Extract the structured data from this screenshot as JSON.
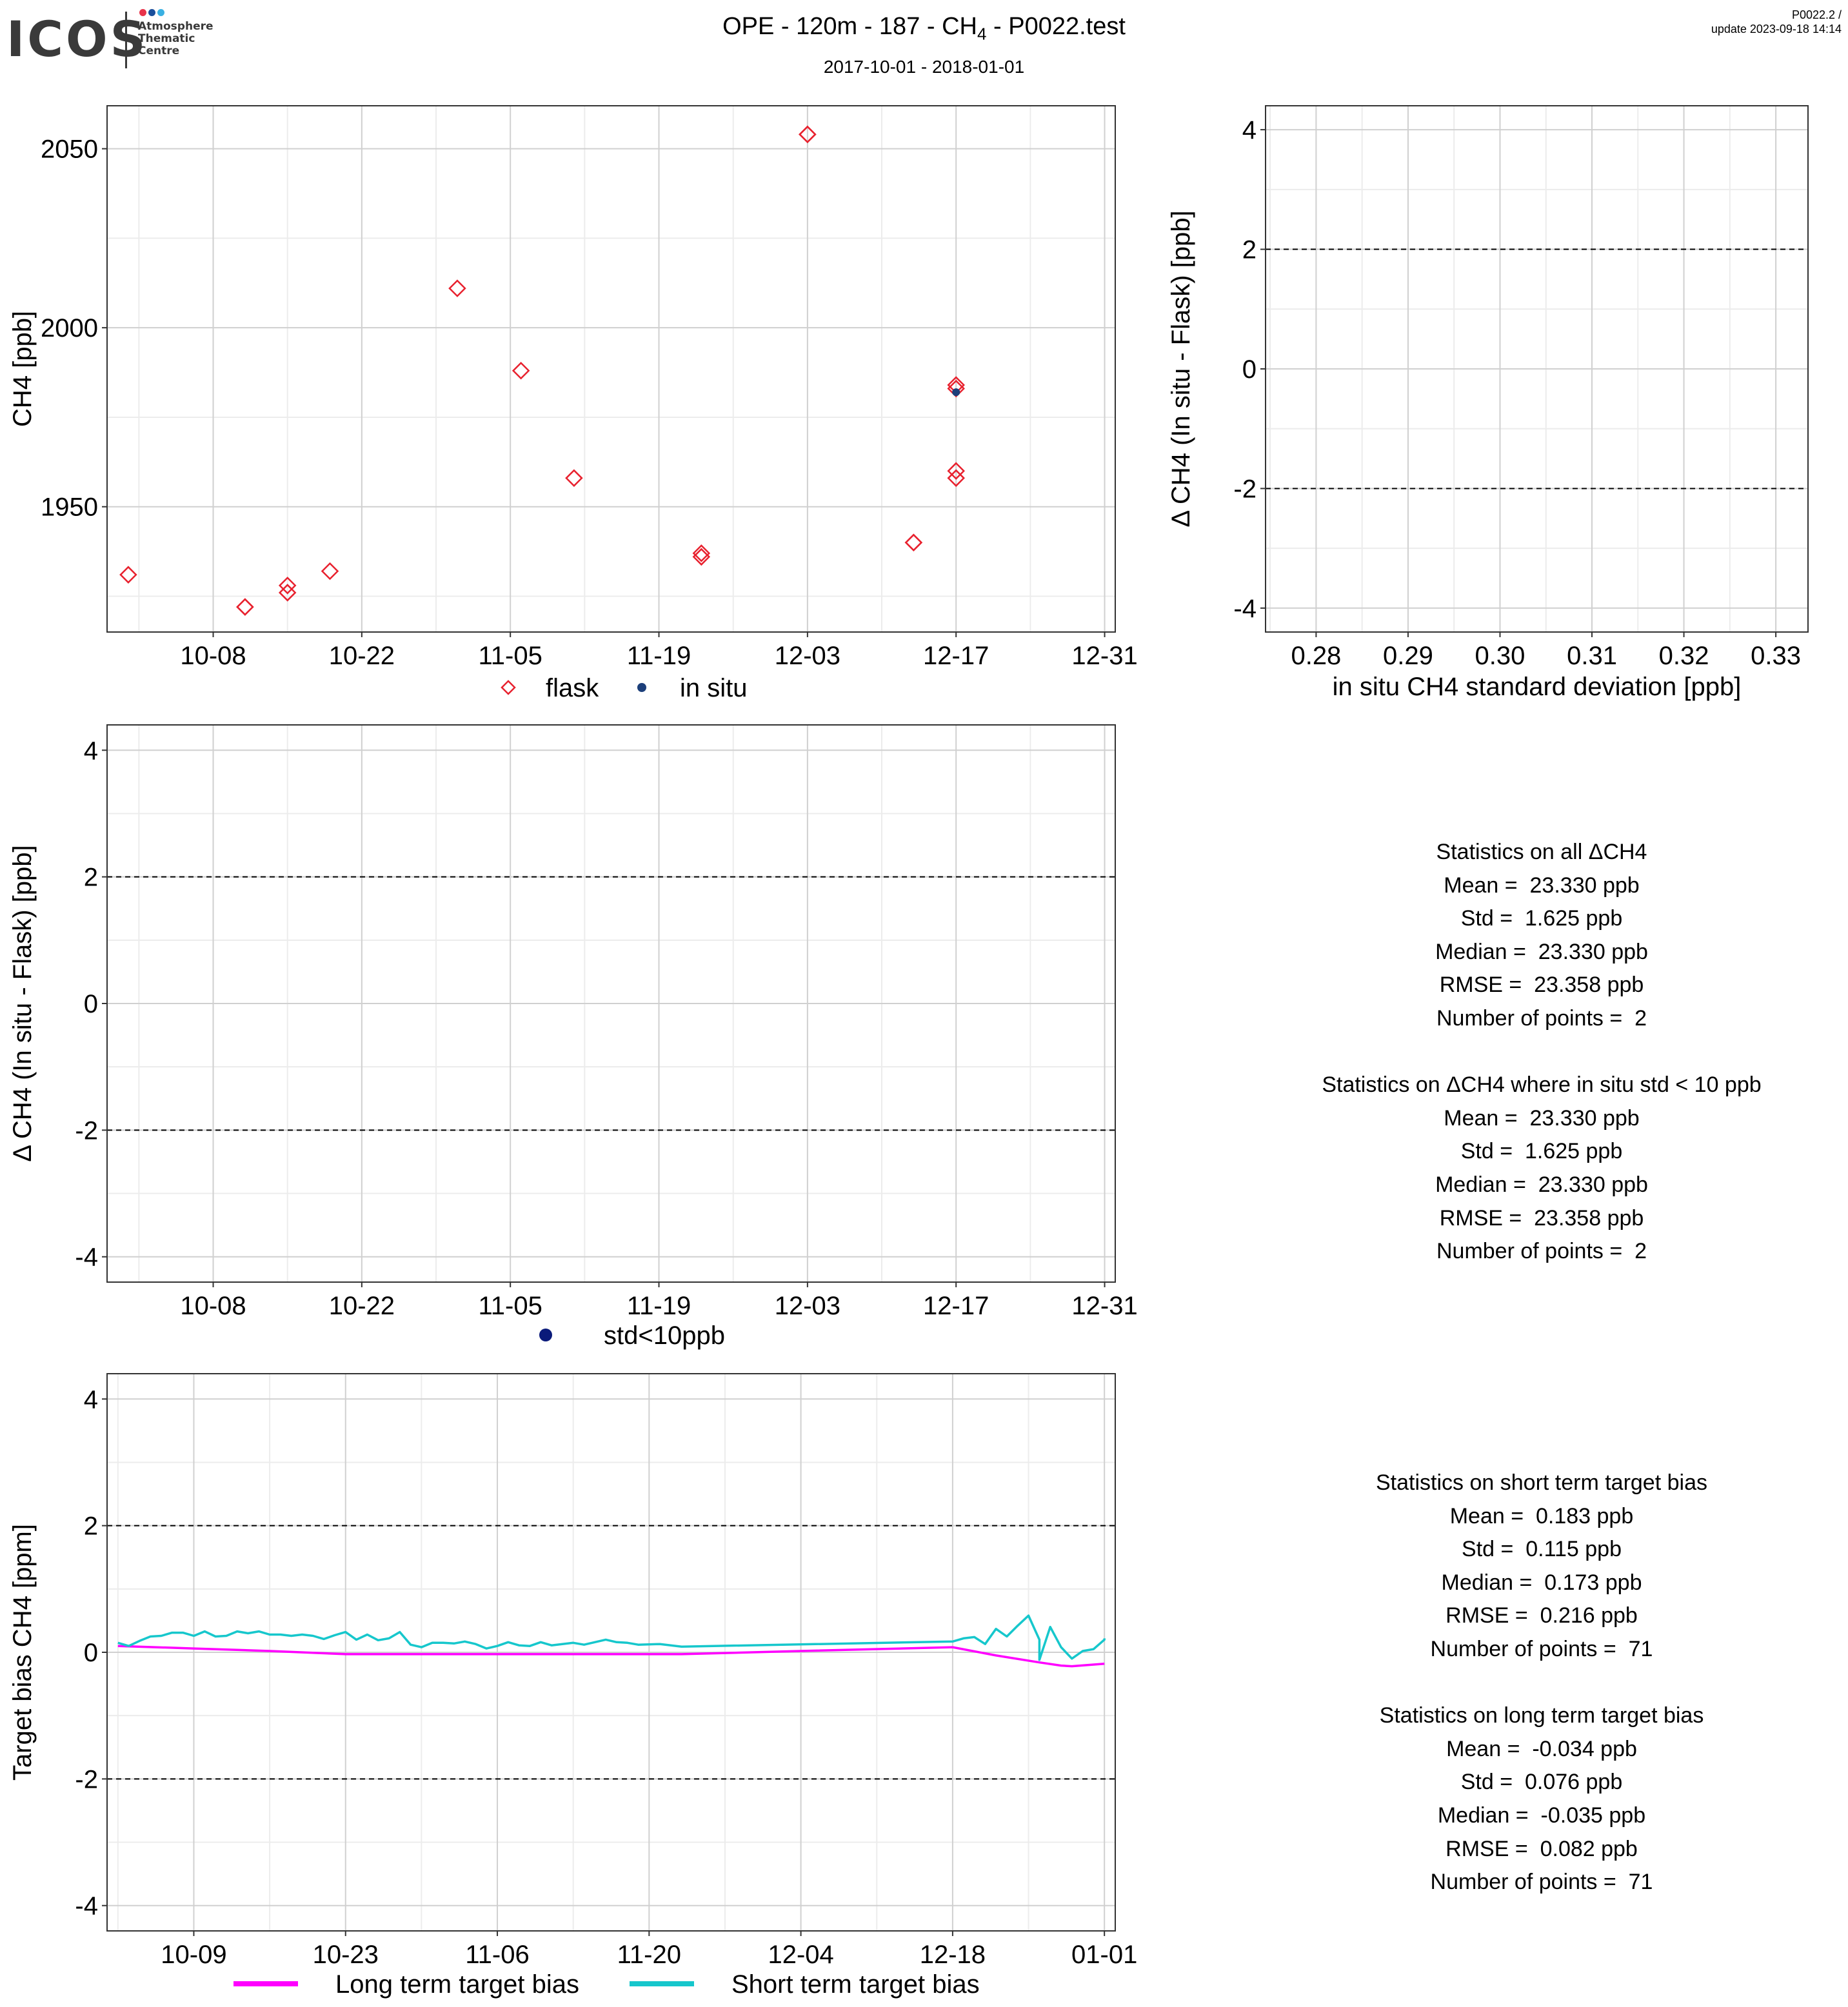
{
  "header": {
    "logo_word": "ICOS",
    "logo_lines": [
      "Atmosphere",
      "Thematic",
      "Centre"
    ],
    "logo_dot_colors": [
      "#e8334a",
      "#1a4f9c",
      "#3ab0e2"
    ],
    "title_prefix": "OPE - 120m - 187 - CH",
    "title_sub": "4",
    "title_suffix": " - P0022.test",
    "subtitle": "2017-10-01 - 2018-01-01",
    "version_line1": "P0022.2 /",
    "version_line2": "update  2023-09-18 14:14"
  },
  "colors": {
    "flask": "#e8212e",
    "in_situ": "#1c3f7a",
    "std_point": "#0a1a7a",
    "long_term": "#ff00ff",
    "short_term": "#16c7cc",
    "grid_major": "#d0d0d0",
    "grid_minor": "#ececec"
  },
  "stats_all": {
    "lines": [
      "Statistics on all ΔCH4",
      "Mean =  23.330 ppb",
      "Std =  1.625 ppb",
      "Median =  23.330 ppb",
      "RMSE =  23.358 ppb",
      "Number of points =  2",
      "",
      "Statistics on ΔCH4 where in situ std < 10 ppb",
      "Mean =  23.330 ppb",
      "Std =  1.625 ppb",
      "Median =  23.330 ppb",
      "RMSE =  23.358 ppb",
      "Number of points =  2"
    ]
  },
  "stats_target": {
    "lines": [
      "Statistics on short term target bias",
      "Mean =  0.183 ppb",
      "Std =  0.115 ppb",
      "Median =  0.173 ppb",
      "RMSE =  0.216 ppb",
      "Number of points =  71",
      "",
      "Statistics on long term target bias",
      "Mean =  -0.034 ppb",
      "Std =  0.076 ppb",
      "Median =  -0.035 ppb",
      "RMSE =  0.082 ppb",
      "Number of points =  71"
    ]
  },
  "chart_data": [
    {
      "id": "ch4_timeseries",
      "type": "scatter",
      "ylabel": "CH4 [ppb]",
      "xlim": [
        "2017-09-28",
        "2018-01-01"
      ],
      "ylim": [
        1915,
        2062
      ],
      "x_ticks": [
        "10-08",
        "10-22",
        "11-05",
        "11-19",
        "12-03",
        "12-17",
        "12-31"
      ],
      "x_tick_dates": [
        "2017-10-08",
        "2017-10-22",
        "2017-11-05",
        "2017-11-19",
        "2017-12-03",
        "2017-12-17",
        "2017-12-31"
      ],
      "y_ticks": [
        1950,
        2000,
        2050
      ],
      "legend_position": "bottom",
      "series": [
        {
          "name": "flask",
          "marker": "diamond-open",
          "points": [
            {
              "x": "2017-09-30",
              "y": 1931
            },
            {
              "x": "2017-10-11",
              "y": 1922
            },
            {
              "x": "2017-10-11",
              "y": 1922
            },
            {
              "x": "2017-10-15",
              "y": 1928
            },
            {
              "x": "2017-10-15",
              "y": 1926
            },
            {
              "x": "2017-10-19",
              "y": 1932
            },
            {
              "x": "2017-10-31",
              "y": 2011
            },
            {
              "x": "2017-11-06",
              "y": 1988
            },
            {
              "x": "2017-11-11",
              "y": 1958
            },
            {
              "x": "2017-11-23",
              "y": 1937
            },
            {
              "x": "2017-11-23",
              "y": 1936
            },
            {
              "x": "2017-12-03",
              "y": 2054
            },
            {
              "x": "2017-12-03",
              "y": 2054
            },
            {
              "x": "2017-12-13",
              "y": 1940
            },
            {
              "x": "2017-12-13",
              "y": 1940
            },
            {
              "x": "2017-12-17",
              "y": 1983
            },
            {
              "x": "2017-12-17",
              "y": 1984
            },
            {
              "x": "2017-12-17",
              "y": 1960
            },
            {
              "x": "2017-12-17",
              "y": 1958
            }
          ]
        },
        {
          "name": "in situ",
          "marker": "dot",
          "points": [
            {
              "x": "2017-12-17",
              "y": 1982
            }
          ]
        }
      ]
    },
    {
      "id": "delta_vs_std",
      "type": "scatter",
      "xlabel": "in situ CH4 standard deviation [ppb]",
      "ylabel": "Δ CH4 (In situ - Flask) [ppb]",
      "xlim": [
        0.2745,
        0.3335
      ],
      "ylim": [
        -4.4,
        4.4
      ],
      "x_ticks": [
        0.28,
        0.29,
        0.3,
        0.31,
        0.32,
        0.33
      ],
      "x_tick_labels": [
        "0.28",
        "0.29",
        "0.30",
        "0.31",
        "0.32",
        "0.33"
      ],
      "y_ticks": [
        -4,
        -2,
        0,
        2,
        4
      ],
      "reference_lines": [
        2,
        -2
      ],
      "series": []
    },
    {
      "id": "delta_timeseries",
      "type": "scatter",
      "ylabel": "Δ CH4 (In situ - Flask) [ppb]",
      "xlim": [
        "2017-09-28",
        "2018-01-01"
      ],
      "ylim": [
        -4.4,
        4.4
      ],
      "x_ticks": [
        "10-08",
        "10-22",
        "11-05",
        "11-19",
        "12-03",
        "12-17",
        "12-31"
      ],
      "x_tick_dates": [
        "2017-10-08",
        "2017-10-22",
        "2017-11-05",
        "2017-11-19",
        "2017-12-03",
        "2017-12-17",
        "2017-12-31"
      ],
      "y_ticks": [
        -4,
        -2,
        0,
        2,
        4
      ],
      "reference_lines": [
        2,
        -2
      ],
      "legend_position": "bottom",
      "series": [
        {
          "name": "std<10ppb",
          "marker": "dot",
          "points": []
        }
      ]
    },
    {
      "id": "target_bias",
      "type": "line",
      "ylabel": "Target bias CH4 [ppm]",
      "xlim": [
        "2017-10-01",
        "2018-01-02"
      ],
      "ylim": [
        -4.4,
        4.4
      ],
      "x_ticks": [
        "10-09",
        "10-23",
        "11-06",
        "11-20",
        "12-04",
        "12-18",
        "01-01"
      ],
      "x_tick_dates": [
        "2017-10-09",
        "2017-10-23",
        "2017-11-06",
        "2017-11-20",
        "2017-12-04",
        "2017-12-18",
        "2018-01-01"
      ],
      "y_ticks": [
        -4,
        -2,
        0,
        2,
        4
      ],
      "reference_lines": [
        2,
        -2
      ],
      "legend_position": "bottom",
      "series": [
        {
          "name": "Long term target bias",
          "points": [
            {
              "x": "2017-10-02",
              "y": 0.1
            },
            {
              "x": "2017-10-09",
              "y": 0.06
            },
            {
              "x": "2017-10-16",
              "y": 0.02
            },
            {
              "x": "2017-10-23",
              "y": -0.03
            },
            {
              "x": "2017-11-06",
              "y": -0.03
            },
            {
              "x": "2017-11-20",
              "y": -0.03
            },
            {
              "x": "2017-11-23",
              "y": -0.03
            },
            {
              "x": "2017-12-04",
              "y": 0.02
            },
            {
              "x": "2017-12-18",
              "y": 0.08
            },
            {
              "x": "2017-12-22",
              "y": -0.05
            },
            {
              "x": "2017-12-26",
              "y": -0.16
            },
            {
              "x": "2017-12-28",
              "y": -0.21
            },
            {
              "x": "2017-12-29",
              "y": -0.22
            },
            {
              "x": "2018-01-01",
              "y": -0.18
            }
          ]
        },
        {
          "name": "Short term target bias",
          "points": [
            {
              "x": "2017-10-02",
              "y": 0.15
            },
            {
              "x": "2017-10-03",
              "y": 0.1
            },
            {
              "x": "2017-10-04",
              "y": 0.18
            },
            {
              "x": "2017-10-05",
              "y": 0.25
            },
            {
              "x": "2017-10-06",
              "y": 0.26
            },
            {
              "x": "2017-10-07",
              "y": 0.31
            },
            {
              "x": "2017-10-08",
              "y": 0.31
            },
            {
              "x": "2017-10-09",
              "y": 0.26
            },
            {
              "x": "2017-10-10",
              "y": 0.33
            },
            {
              "x": "2017-10-11",
              "y": 0.25
            },
            {
              "x": "2017-10-12",
              "y": 0.26
            },
            {
              "x": "2017-10-13",
              "y": 0.33
            },
            {
              "x": "2017-10-14",
              "y": 0.3
            },
            {
              "x": "2017-10-15",
              "y": 0.33
            },
            {
              "x": "2017-10-16",
              "y": 0.28
            },
            {
              "x": "2017-10-17",
              "y": 0.28
            },
            {
              "x": "2017-10-18",
              "y": 0.26
            },
            {
              "x": "2017-10-19",
              "y": 0.28
            },
            {
              "x": "2017-10-20",
              "y": 0.26
            },
            {
              "x": "2017-10-21",
              "y": 0.21
            },
            {
              "x": "2017-10-22",
              "y": 0.27
            },
            {
              "x": "2017-10-23",
              "y": 0.32
            },
            {
              "x": "2017-10-24",
              "y": 0.2
            },
            {
              "x": "2017-10-25",
              "y": 0.28
            },
            {
              "x": "2017-10-26",
              "y": 0.19
            },
            {
              "x": "2017-10-27",
              "y": 0.22
            },
            {
              "x": "2017-10-28",
              "y": 0.32
            },
            {
              "x": "2017-10-29",
              "y": 0.12
            },
            {
              "x": "2017-10-30",
              "y": 0.08
            },
            {
              "x": "2017-10-31",
              "y": 0.15
            },
            {
              "x": "2017-11-01",
              "y": 0.15
            },
            {
              "x": "2017-11-02",
              "y": 0.14
            },
            {
              "x": "2017-11-03",
              "y": 0.17
            },
            {
              "x": "2017-11-04",
              "y": 0.13
            },
            {
              "x": "2017-11-05",
              "y": 0.06
            },
            {
              "x": "2017-11-06",
              "y": 0.1
            },
            {
              "x": "2017-11-07",
              "y": 0.16
            },
            {
              "x": "2017-11-08",
              "y": 0.11
            },
            {
              "x": "2017-11-09",
              "y": 0.1
            },
            {
              "x": "2017-11-10",
              "y": 0.16
            },
            {
              "x": "2017-11-11",
              "y": 0.11
            },
            {
              "x": "2017-11-12",
              "y": 0.13
            },
            {
              "x": "2017-11-13",
              "y": 0.15
            },
            {
              "x": "2017-11-14",
              "y": 0.12
            },
            {
              "x": "2017-11-15",
              "y": 0.16
            },
            {
              "x": "2017-11-16",
              "y": 0.2
            },
            {
              "x": "2017-11-17",
              "y": 0.16
            },
            {
              "x": "2017-11-18",
              "y": 0.15
            },
            {
              "x": "2017-11-19",
              "y": 0.12
            },
            {
              "x": "2017-11-21",
              "y": 0.13
            },
            {
              "x": "2017-11-23",
              "y": 0.09
            },
            {
              "x": "2017-12-18",
              "y": 0.17
            },
            {
              "x": "2017-12-19",
              "y": 0.22
            },
            {
              "x": "2017-12-20",
              "y": 0.24
            },
            {
              "x": "2017-12-21",
              "y": 0.13
            },
            {
              "x": "2017-12-22",
              "y": 0.37
            },
            {
              "x": "2017-12-23",
              "y": 0.25
            },
            {
              "x": "2017-12-24",
              "y": 0.42
            },
            {
              "x": "2017-12-25",
              "y": 0.58
            },
            {
              "x": "2017-12-26",
              "y": 0.2
            },
            {
              "x": "2017-12-26",
              "y": -0.12
            },
            {
              "x": "2017-12-27",
              "y": 0.4
            },
            {
              "x": "2017-12-28",
              "y": 0.08
            },
            {
              "x": "2017-12-29",
              "y": -0.1
            },
            {
              "x": "2017-12-30",
              "y": 0.02
            },
            {
              "x": "2017-12-31",
              "y": 0.05
            },
            {
              "x": "2018-01-01",
              "y": 0.2
            },
            {
              "x": "2018-01-01",
              "y": 0.22
            }
          ]
        }
      ]
    }
  ]
}
